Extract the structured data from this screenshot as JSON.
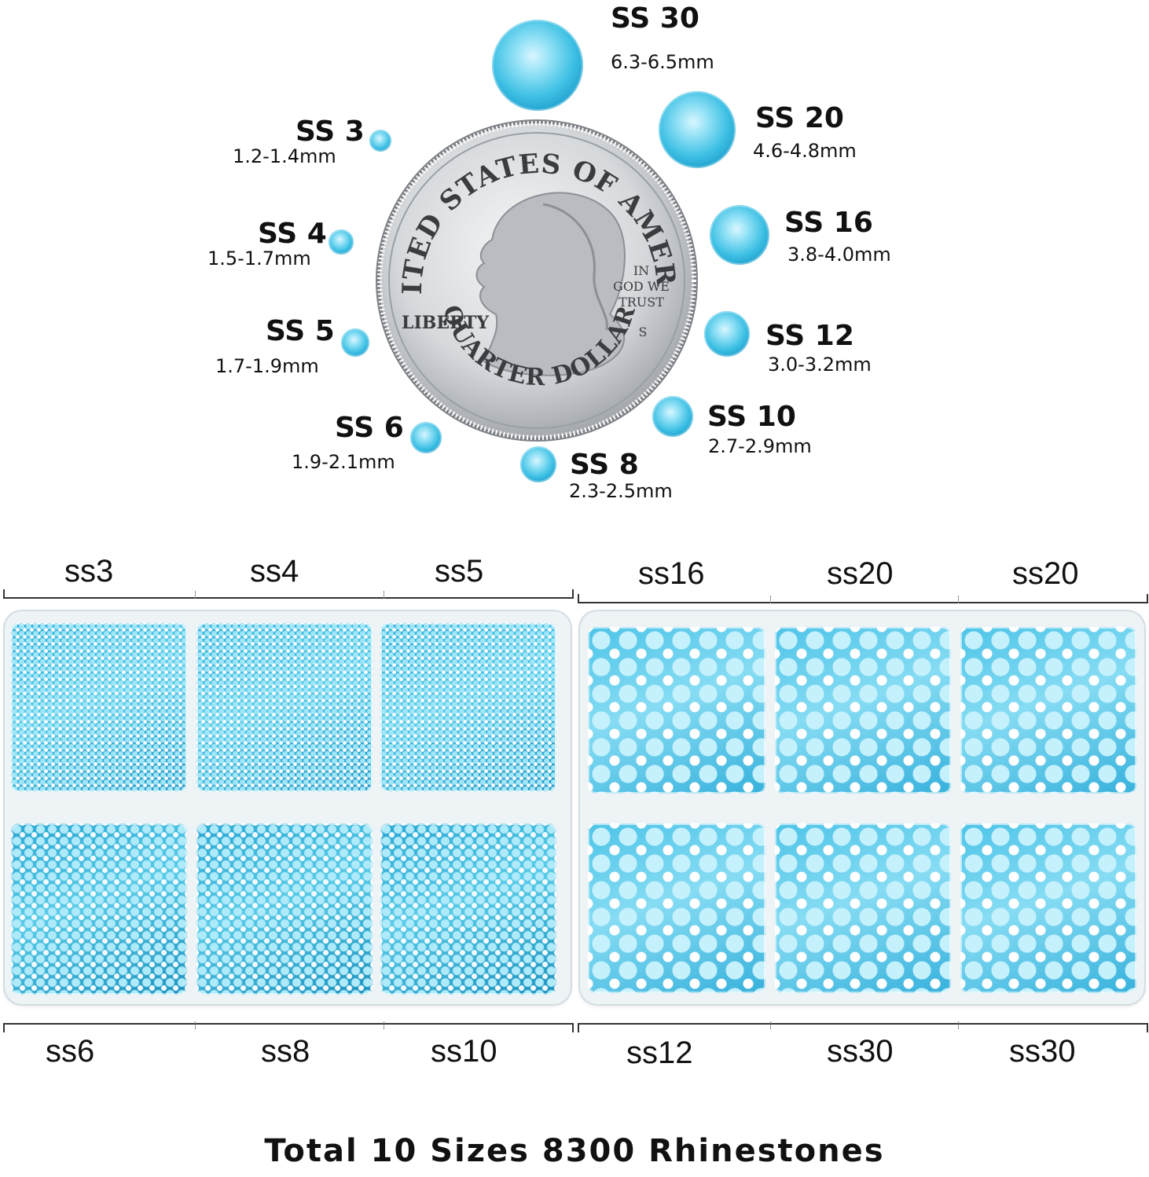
{
  "size_chart": [
    {
      "name": "SS 30",
      "mm": "6.3-6.5mm"
    },
    {
      "name": "SS 20",
      "mm": "4.6-4.8mm"
    },
    {
      "name": "SS 16",
      "mm": "3.8-4.0mm"
    },
    {
      "name": "SS 12",
      "mm": "3.0-3.2mm"
    },
    {
      "name": "SS 10",
      "mm": "2.7-2.9mm"
    },
    {
      "name": "SS 8",
      "mm": "2.3-2.5mm"
    },
    {
      "name": "SS 6",
      "mm": "1.9-2.1mm"
    },
    {
      "name": "SS 5",
      "mm": "1.7-1.9mm"
    },
    {
      "name": "SS 4",
      "mm": "1.5-1.7mm"
    },
    {
      "name": "SS 3",
      "mm": "1.2-1.4mm"
    }
  ],
  "coin": {
    "top_text": "UNITED STATES OF AMERICA",
    "motto": [
      "IN",
      "GOD WE",
      "TRUST"
    ],
    "left_text": "LIBERTY",
    "mint_mark": "S",
    "bottom_text": "QUARTER DOLLAR"
  },
  "box_left": {
    "top_labels": [
      "ss3",
      "ss4",
      "ss5"
    ],
    "bottom_labels": [
      "ss6",
      "ss8",
      "ss10"
    ]
  },
  "box_right": {
    "top_labels": [
      "ss16",
      "ss20",
      "ss20"
    ],
    "bottom_labels": [
      "ss12",
      "ss30",
      "ss30"
    ]
  },
  "footer": "Total 10 Sizes 8300 Rhinestones",
  "colors": {
    "gem": "#3ec0e4",
    "text": "#111111",
    "coin": "#c9ccd0"
  }
}
